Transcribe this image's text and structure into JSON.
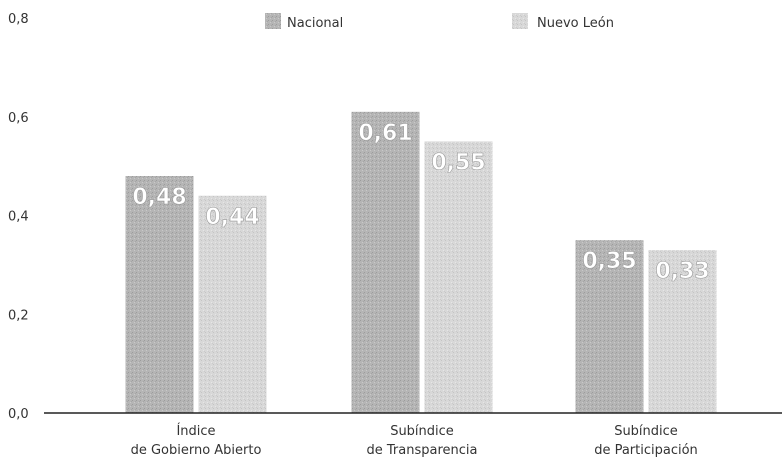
{
  "chart_data": {
    "type": "bar",
    "categories": [
      [
        "Índice",
        "de Gobierno Abierto"
      ],
      [
        "Subíndice",
        "de Transparencia"
      ],
      [
        "Subíndice",
        "de Participación"
      ]
    ],
    "series": [
      {
        "name": "Nacional",
        "values": [
          0.48,
          0.61,
          0.35
        ],
        "labels": [
          "0,48",
          "0,61",
          "0,35"
        ],
        "color": "#b5b5b5"
      },
      {
        "name": "Nuevo León",
        "values": [
          0.44,
          0.55,
          0.33
        ],
        "labels": [
          "0,44",
          "0,55",
          "0,33"
        ],
        "color": "#d6d6d6"
      }
    ],
    "ylim": [
      0,
      0.8
    ],
    "yticks": [
      "0,0",
      "0,2",
      "0,4",
      "0,6",
      "0,8"
    ],
    "grid": false,
    "legend_position": "top"
  }
}
